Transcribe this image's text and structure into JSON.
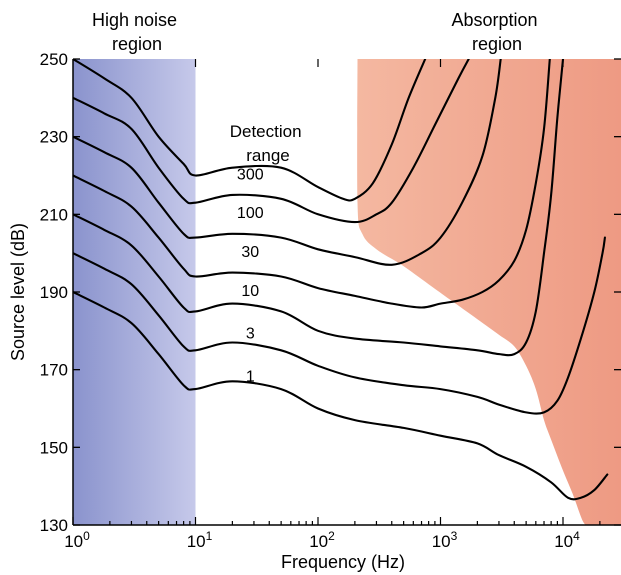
{
  "chart_data": {
    "type": "line",
    "title": "",
    "xlabel": "Frequency (Hz)",
    "ylabel": "Source level (dB)",
    "x_scale": "log",
    "xlim": [
      1,
      25000
    ],
    "ylim": [
      130,
      250
    ],
    "x_ticks": [
      {
        "value": 1,
        "base": "10",
        "exp": "0"
      },
      {
        "value": 10,
        "base": "10",
        "exp": "1"
      },
      {
        "value": 100,
        "base": "10",
        "exp": "2"
      },
      {
        "value": 1000,
        "base": "10",
        "exp": "3"
      },
      {
        "value": 10000,
        "base": "10",
        "exp": "4"
      }
    ],
    "y_ticks": [
      "130",
      "150",
      "170",
      "190",
      "210",
      "230",
      "250"
    ],
    "grid": false,
    "regions": {
      "noise": {
        "label_lines": [
          "High noise",
          "region"
        ],
        "x_range": [
          1,
          10
        ],
        "color": "#8c95cf"
      },
      "absorption": {
        "label_lines": [
          "Absorption",
          "region"
        ],
        "color": "#ef9c82",
        "boundary": [
          [
            210,
            250
          ],
          [
            210,
            213
          ],
          [
            230,
            205
          ],
          [
            300,
            201
          ],
          [
            480,
            197
          ],
          [
            800,
            192
          ],
          [
            1200,
            188
          ],
          [
            2000,
            183
          ],
          [
            3000,
            179
          ],
          [
            4000,
            176
          ],
          [
            5000,
            171
          ],
          [
            6000,
            165
          ],
          [
            7000,
            157
          ],
          [
            8000,
            152
          ],
          [
            10000,
            144
          ],
          [
            12000,
            138
          ],
          [
            14500,
            131
          ],
          [
            16000,
            130
          ]
        ]
      }
    },
    "series_group_label_lines": [
      "Detection",
      "range"
    ],
    "series": [
      {
        "name": "300",
        "label_at": [
          28,
          219
        ],
        "points": [
          [
            1,
            250
          ],
          [
            1.8,
            245
          ],
          [
            3,
            240
          ],
          [
            5,
            230
          ],
          [
            8,
            223
          ],
          [
            10,
            220
          ],
          [
            20,
            222
          ],
          [
            50,
            222
          ],
          [
            100,
            217
          ],
          [
            160,
            214
          ],
          [
            200,
            214
          ],
          [
            280,
            218
          ],
          [
            400,
            228
          ],
          [
            550,
            240
          ],
          [
            750,
            250
          ]
        ]
      },
      {
        "name": "100",
        "label_at": [
          28,
          209
        ],
        "points": [
          [
            1,
            240
          ],
          [
            1.8,
            236
          ],
          [
            3,
            232
          ],
          [
            5,
            222
          ],
          [
            8,
            214
          ],
          [
            10,
            213
          ],
          [
            20,
            215
          ],
          [
            50,
            214
          ],
          [
            100,
            210
          ],
          [
            200,
            208
          ],
          [
            300,
            210
          ],
          [
            400,
            213
          ],
          [
            600,
            222
          ],
          [
            900,
            233
          ],
          [
            1400,
            245
          ],
          [
            1700,
            250
          ]
        ]
      },
      {
        "name": "30",
        "label_at": [
          28,
          199
        ],
        "points": [
          [
            1,
            230
          ],
          [
            1.8,
            226
          ],
          [
            3,
            222
          ],
          [
            5,
            213
          ],
          [
            8,
            205
          ],
          [
            10,
            204
          ],
          [
            20,
            205
          ],
          [
            50,
            204
          ],
          [
            100,
            201
          ],
          [
            200,
            199
          ],
          [
            400,
            197
          ],
          [
            700,
            200
          ],
          [
            1000,
            204
          ],
          [
            1500,
            213
          ],
          [
            2200,
            225
          ],
          [
            2800,
            240
          ],
          [
            3100,
            250
          ]
        ]
      },
      {
        "name": "10",
        "label_at": [
          28,
          189
        ],
        "points": [
          [
            1,
            220
          ],
          [
            1.8,
            216
          ],
          [
            3,
            212
          ],
          [
            5,
            204
          ],
          [
            8,
            196
          ],
          [
            10,
            194
          ],
          [
            20,
            195
          ],
          [
            50,
            194
          ],
          [
            100,
            191
          ],
          [
            200,
            189
          ],
          [
            400,
            187
          ],
          [
            700,
            186
          ],
          [
            1000,
            187
          ],
          [
            1500,
            188
          ],
          [
            2200,
            190
          ],
          [
            3000,
            193
          ],
          [
            4000,
            198
          ],
          [
            5000,
            206
          ],
          [
            6000,
            218
          ],
          [
            7000,
            232
          ],
          [
            7800,
            250
          ]
        ]
      },
      {
        "name": "3",
        "label_at": [
          28,
          178
        ],
        "points": [
          [
            1,
            210
          ],
          [
            1.8,
            206
          ],
          [
            3,
            202
          ],
          [
            5,
            194
          ],
          [
            8,
            186
          ],
          [
            10,
            185
          ],
          [
            20,
            187
          ],
          [
            50,
            185
          ],
          [
            100,
            180
          ],
          [
            200,
            178
          ],
          [
            500,
            177
          ],
          [
            1000,
            176
          ],
          [
            2000,
            175
          ],
          [
            3000,
            174
          ],
          [
            4000,
            174
          ],
          [
            5000,
            177
          ],
          [
            6000,
            185
          ],
          [
            7000,
            200
          ],
          [
            8000,
            215
          ],
          [
            9000,
            235
          ],
          [
            10000,
            250
          ]
        ]
      },
      {
        "name": "1",
        "label_at": [
          28,
          167
        ],
        "points": [
          [
            1,
            200
          ],
          [
            1.8,
            196
          ],
          [
            3,
            192
          ],
          [
            5,
            184
          ],
          [
            8,
            176
          ],
          [
            10,
            175
          ],
          [
            20,
            177
          ],
          [
            50,
            175
          ],
          [
            100,
            171
          ],
          [
            200,
            168
          ],
          [
            500,
            166
          ],
          [
            1000,
            165
          ],
          [
            2000,
            163
          ],
          [
            3000,
            161
          ],
          [
            5000,
            159
          ],
          [
            7000,
            159
          ],
          [
            9000,
            162
          ],
          [
            11000,
            168
          ],
          [
            14000,
            178
          ],
          [
            18000,
            190
          ],
          [
            21000,
            200
          ],
          [
            22000,
            204
          ]
        ]
      },
      {
        "name": "",
        "points": [
          [
            1,
            190
          ],
          [
            1.8,
            186
          ],
          [
            3,
            182
          ],
          [
            5,
            174
          ],
          [
            8,
            166
          ],
          [
            10,
            165
          ],
          [
            20,
            167
          ],
          [
            50,
            165
          ],
          [
            100,
            160
          ],
          [
            200,
            157
          ],
          [
            500,
            155
          ],
          [
            1000,
            153
          ],
          [
            2000,
            151
          ],
          [
            3000,
            148
          ],
          [
            5000,
            145
          ],
          [
            8000,
            141
          ],
          [
            11000,
            137
          ],
          [
            14000,
            137
          ],
          [
            18000,
            139
          ],
          [
            23000,
            143
          ]
        ]
      }
    ]
  }
}
